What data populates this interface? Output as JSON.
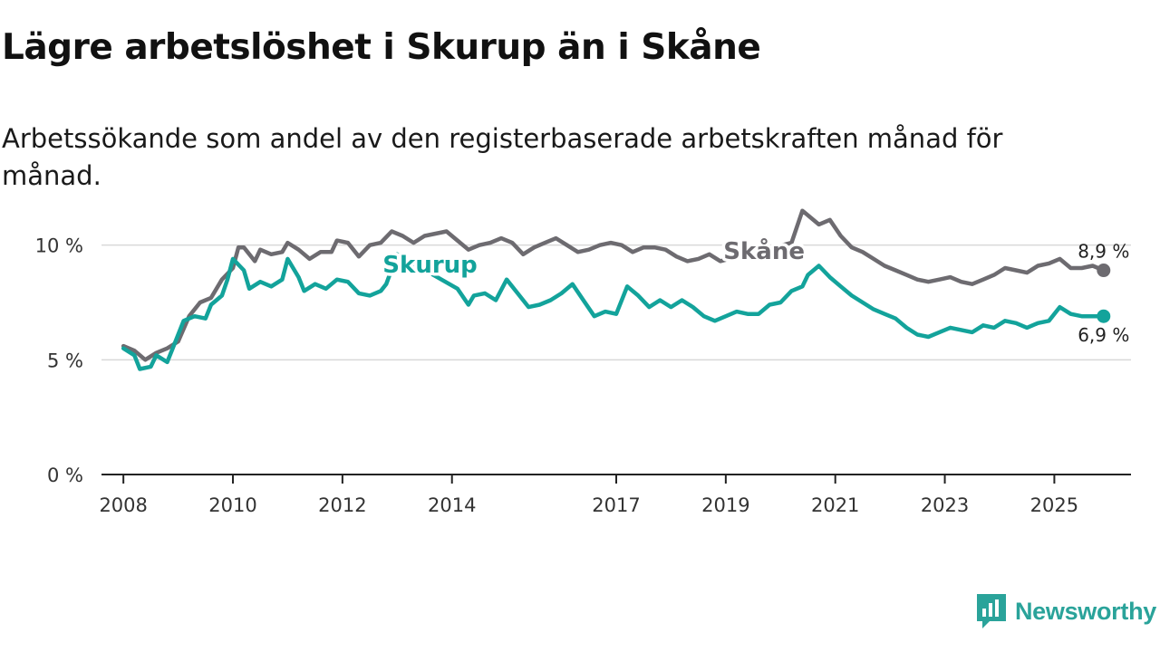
{
  "title": "Lägre arbetslöshet i Skurup än i Skåne",
  "subtitle": "Arbetssökande som andel av den registerbaserade arbetskraften månad för månad.",
  "brand": {
    "name": "Newsworthy",
    "icon": "chart-bubble-icon"
  },
  "colors": {
    "skane": "#6d6b70",
    "skurup": "#13a39b",
    "grid": "#d9d9d9",
    "axis": "#222222",
    "brand": "#2aa39a"
  },
  "chart_data": {
    "type": "line",
    "title": "Lägre arbetslöshet i Skurup än i Skåne",
    "xlabel": "",
    "ylabel": "",
    "xlim": [
      2007.6,
      2026.4
    ],
    "ylim": [
      0,
      12
    ],
    "y_ticks": [
      {
        "value": 0,
        "label": "0 %"
      },
      {
        "value": 5,
        "label": "5 %"
      },
      {
        "value": 10,
        "label": "10 %"
      }
    ],
    "x_ticks": [
      {
        "value": 2008,
        "label": "2008"
      },
      {
        "value": 2010,
        "label": "2010"
      },
      {
        "value": 2012,
        "label": "2012"
      },
      {
        "value": 2014,
        "label": "2014"
      },
      {
        "value": 2017,
        "label": "2017"
      },
      {
        "value": 2019,
        "label": "2019"
      },
      {
        "value": 2021,
        "label": "2021"
      },
      {
        "value": 2023,
        "label": "2023"
      },
      {
        "value": 2025,
        "label": "2025"
      }
    ],
    "series": [
      {
        "name": "Skåne",
        "end_label": "8,9 %",
        "points": [
          [
            2008.0,
            5.6
          ],
          [
            2008.2,
            5.4
          ],
          [
            2008.4,
            5.0
          ],
          [
            2008.6,
            5.3
          ],
          [
            2008.8,
            5.5
          ],
          [
            2009.0,
            5.8
          ],
          [
            2009.2,
            6.9
          ],
          [
            2009.4,
            7.5
          ],
          [
            2009.6,
            7.7
          ],
          [
            2009.8,
            8.5
          ],
          [
            2010.0,
            9.0
          ],
          [
            2010.1,
            9.9
          ],
          [
            2010.2,
            9.9
          ],
          [
            2010.4,
            9.3
          ],
          [
            2010.5,
            9.8
          ],
          [
            2010.7,
            9.6
          ],
          [
            2010.9,
            9.7
          ],
          [
            2011.0,
            10.1
          ],
          [
            2011.2,
            9.8
          ],
          [
            2011.4,
            9.4
          ],
          [
            2011.6,
            9.7
          ],
          [
            2011.8,
            9.7
          ],
          [
            2011.9,
            10.2
          ],
          [
            2012.1,
            10.1
          ],
          [
            2012.3,
            9.5
          ],
          [
            2012.5,
            10.0
          ],
          [
            2012.7,
            10.1
          ],
          [
            2012.9,
            10.6
          ],
          [
            2013.1,
            10.4
          ],
          [
            2013.3,
            10.1
          ],
          [
            2013.5,
            10.4
          ],
          [
            2013.7,
            10.5
          ],
          [
            2013.9,
            10.6
          ],
          [
            2014.1,
            10.2
          ],
          [
            2014.3,
            9.8
          ],
          [
            2014.5,
            10.0
          ],
          [
            2014.7,
            10.1
          ],
          [
            2014.9,
            10.3
          ],
          [
            2015.1,
            10.1
          ],
          [
            2015.3,
            9.6
          ],
          [
            2015.5,
            9.9
          ],
          [
            2015.7,
            10.1
          ],
          [
            2015.9,
            10.3
          ],
          [
            2016.1,
            10.0
          ],
          [
            2016.3,
            9.7
          ],
          [
            2016.5,
            9.8
          ],
          [
            2016.7,
            10.0
          ],
          [
            2016.9,
            10.1
          ],
          [
            2017.1,
            10.0
          ],
          [
            2017.3,
            9.7
          ],
          [
            2017.5,
            9.9
          ],
          [
            2017.7,
            9.9
          ],
          [
            2017.9,
            9.8
          ],
          [
            2018.1,
            9.5
          ],
          [
            2018.3,
            9.3
          ],
          [
            2018.5,
            9.4
          ],
          [
            2018.7,
            9.6
          ],
          [
            2018.9,
            9.3
          ],
          [
            2020.2,
            10.1
          ],
          [
            2020.4,
            11.5
          ],
          [
            2020.5,
            11.3
          ],
          [
            2020.7,
            10.9
          ],
          [
            2020.9,
            11.1
          ],
          [
            2021.1,
            10.4
          ],
          [
            2021.3,
            9.9
          ],
          [
            2021.5,
            9.7
          ],
          [
            2021.7,
            9.4
          ],
          [
            2021.9,
            9.1
          ],
          [
            2022.1,
            8.9
          ],
          [
            2022.3,
            8.7
          ],
          [
            2022.5,
            8.5
          ],
          [
            2022.7,
            8.4
          ],
          [
            2022.9,
            8.5
          ],
          [
            2023.1,
            8.6
          ],
          [
            2023.3,
            8.4
          ],
          [
            2023.5,
            8.3
          ],
          [
            2023.7,
            8.5
          ],
          [
            2023.9,
            8.7
          ],
          [
            2024.1,
            9.0
          ],
          [
            2024.3,
            8.9
          ],
          [
            2024.5,
            8.8
          ],
          [
            2024.7,
            9.1
          ],
          [
            2024.9,
            9.2
          ],
          [
            2025.1,
            9.4
          ],
          [
            2025.3,
            9.0
          ],
          [
            2025.5,
            9.0
          ],
          [
            2025.7,
            9.1
          ],
          [
            2025.9,
            8.9
          ]
        ]
      },
      {
        "name": "Skurup",
        "end_label": "6,9 %",
        "points": [
          [
            2008.0,
            5.5
          ],
          [
            2008.2,
            5.2
          ],
          [
            2008.3,
            4.6
          ],
          [
            2008.5,
            4.7
          ],
          [
            2008.6,
            5.2
          ],
          [
            2008.8,
            4.9
          ],
          [
            2008.9,
            5.5
          ],
          [
            2009.1,
            6.7
          ],
          [
            2009.3,
            6.9
          ],
          [
            2009.5,
            6.8
          ],
          [
            2009.6,
            7.4
          ],
          [
            2009.8,
            7.8
          ],
          [
            2009.9,
            8.5
          ],
          [
            2010.0,
            9.4
          ],
          [
            2010.2,
            8.9
          ],
          [
            2010.3,
            8.1
          ],
          [
            2010.5,
            8.4
          ],
          [
            2010.7,
            8.2
          ],
          [
            2010.9,
            8.5
          ],
          [
            2011.0,
            9.4
          ],
          [
            2011.2,
            8.6
          ],
          [
            2011.3,
            8.0
          ],
          [
            2011.5,
            8.3
          ],
          [
            2011.7,
            8.1
          ],
          [
            2011.9,
            8.5
          ],
          [
            2012.1,
            8.4
          ],
          [
            2012.3,
            7.9
          ],
          [
            2012.5,
            7.8
          ],
          [
            2012.7,
            8.0
          ],
          [
            2012.8,
            8.3
          ],
          [
            2013.0,
            9.6
          ],
          [
            2014.1,
            8.1
          ],
          [
            2014.3,
            7.4
          ],
          [
            2014.4,
            7.8
          ],
          [
            2014.6,
            7.9
          ],
          [
            2014.8,
            7.6
          ],
          [
            2015.0,
            8.5
          ],
          [
            2015.2,
            7.9
          ],
          [
            2015.4,
            7.3
          ],
          [
            2015.6,
            7.4
          ],
          [
            2015.8,
            7.6
          ],
          [
            2016.0,
            7.9
          ],
          [
            2016.2,
            8.3
          ],
          [
            2016.4,
            7.6
          ],
          [
            2016.6,
            6.9
          ],
          [
            2016.8,
            7.1
          ],
          [
            2017.0,
            7.0
          ],
          [
            2017.2,
            8.2
          ],
          [
            2017.4,
            7.8
          ],
          [
            2017.6,
            7.3
          ],
          [
            2017.8,
            7.6
          ],
          [
            2018.0,
            7.3
          ],
          [
            2018.2,
            7.6
          ],
          [
            2018.4,
            7.3
          ],
          [
            2018.6,
            6.9
          ],
          [
            2018.8,
            6.7
          ],
          [
            2019.0,
            6.9
          ],
          [
            2019.2,
            7.1
          ],
          [
            2019.4,
            7.0
          ],
          [
            2019.6,
            7.0
          ],
          [
            2019.8,
            7.4
          ],
          [
            2020.0,
            7.5
          ],
          [
            2020.2,
            8.0
          ],
          [
            2020.4,
            8.2
          ],
          [
            2020.5,
            8.7
          ],
          [
            2020.7,
            9.1
          ],
          [
            2020.9,
            8.6
          ],
          [
            2021.1,
            8.2
          ],
          [
            2021.3,
            7.8
          ],
          [
            2021.5,
            7.5
          ],
          [
            2021.7,
            7.2
          ],
          [
            2021.9,
            7.0
          ],
          [
            2022.1,
            6.8
          ],
          [
            2022.3,
            6.4
          ],
          [
            2022.5,
            6.1
          ],
          [
            2022.7,
            6.0
          ],
          [
            2022.9,
            6.2
          ],
          [
            2023.1,
            6.4
          ],
          [
            2023.3,
            6.3
          ],
          [
            2023.5,
            6.2
          ],
          [
            2023.7,
            6.5
          ],
          [
            2023.9,
            6.4
          ],
          [
            2024.1,
            6.7
          ],
          [
            2024.3,
            6.6
          ],
          [
            2024.5,
            6.4
          ],
          [
            2024.7,
            6.6
          ],
          [
            2024.9,
            6.7
          ],
          [
            2025.1,
            7.3
          ],
          [
            2025.3,
            7.0
          ],
          [
            2025.5,
            6.9
          ],
          [
            2025.7,
            6.9
          ],
          [
            2025.9,
            6.9
          ]
        ]
      }
    ],
    "annotations": [
      {
        "series": "Skåne",
        "text": "Skåne",
        "x": 2019.7,
        "y": 9.4
      },
      {
        "series": "Skurup",
        "text": "Skurup",
        "x": 2013.6,
        "y": 8.8
      }
    ]
  }
}
